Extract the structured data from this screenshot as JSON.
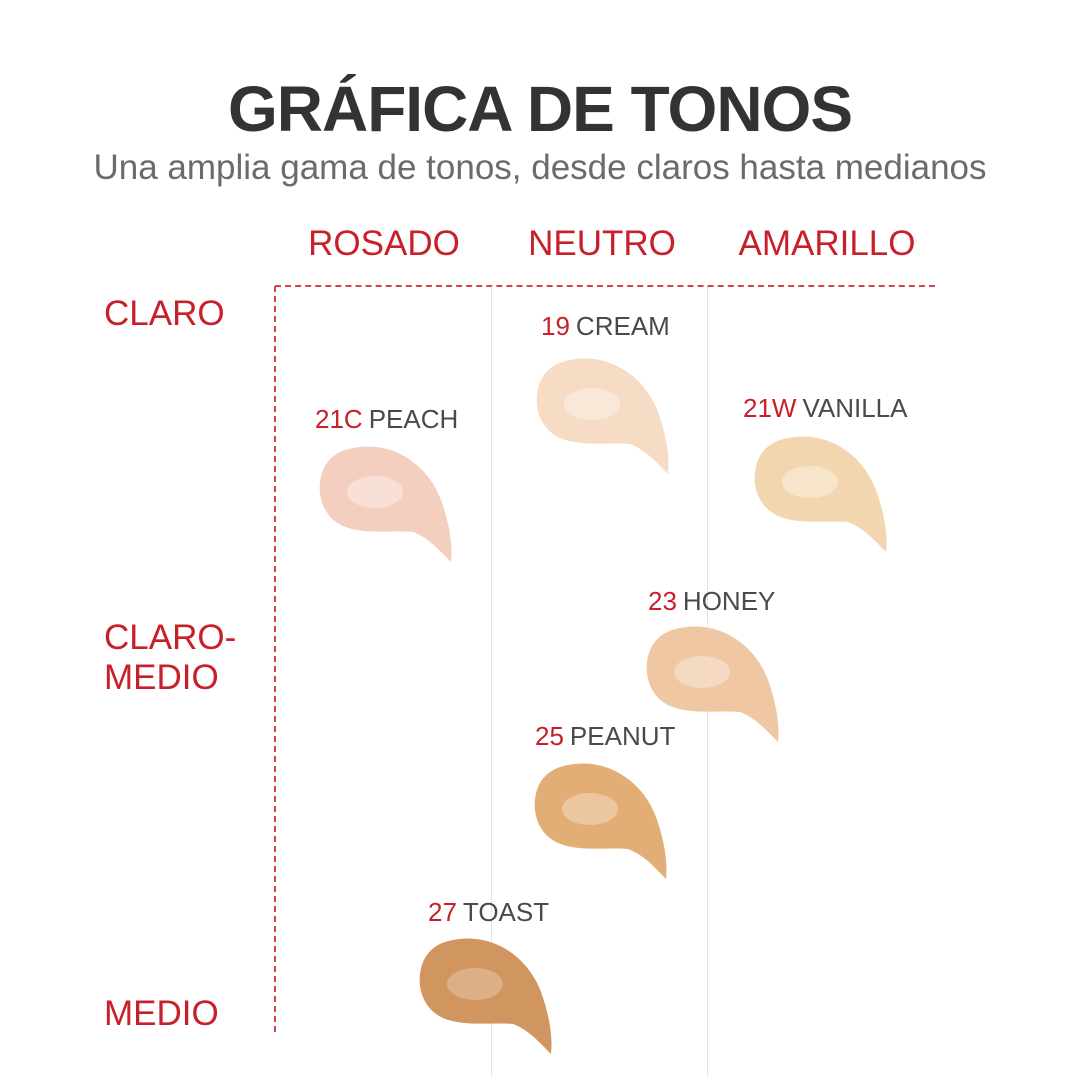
{
  "title": "GRÁFICA DE TONOS",
  "subtitle": "Una amplia gama de tonos, desde claros hasta medianos",
  "columns": {
    "rosado": "ROSADO",
    "neutro": "NEUTRO",
    "amarillo": "AMARILLO"
  },
  "rows": {
    "claro": "CLARO",
    "claro_medio_1": "CLARO-",
    "claro_medio_2": "MEDIO",
    "medio": "MEDIO"
  },
  "shades": [
    {
      "code": "19",
      "name": "CREAM",
      "color": "#f6dcc4"
    },
    {
      "code": "21C",
      "name": "PEACH",
      "color": "#f4cfc0"
    },
    {
      "code": "21W",
      "name": "VANILLA",
      "color": "#f2d6b0"
    },
    {
      "code": "23",
      "name": "HONEY",
      "color": "#efc7a2"
    },
    {
      "code": "25",
      "name": "PEANUT",
      "color": "#e3ae76"
    },
    {
      "code": "27",
      "name": "TOAST",
      "color": "#d1965f"
    }
  ],
  "colors": {
    "accent": "#c8202b",
    "title": "#333333",
    "subtitle": "#6b6b6b"
  }
}
